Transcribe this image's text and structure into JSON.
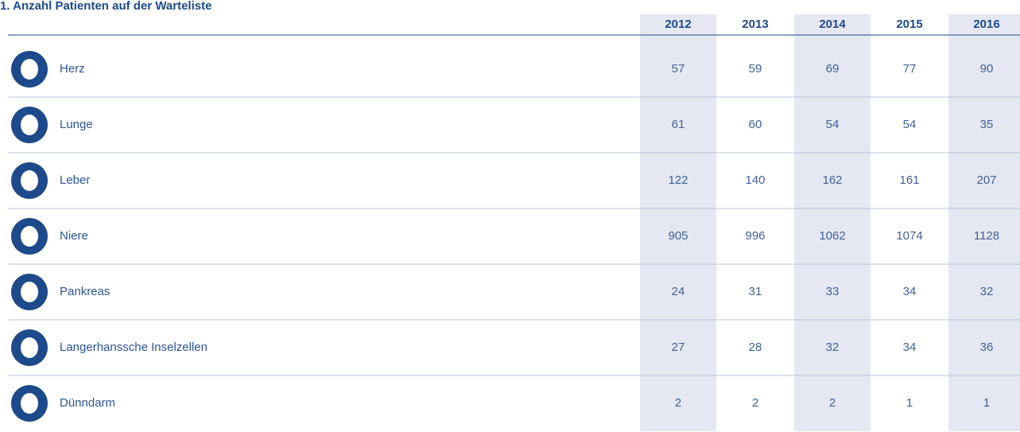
{
  "title": "1. Anzahl Patienten auf der Warteliste",
  "table": {
    "columns": [
      "2012",
      "2013",
      "2014",
      "2015",
      "2016"
    ],
    "rows": [
      {
        "label": "Herz",
        "values": [
          57,
          59,
          69,
          77,
          90
        ]
      },
      {
        "label": "Lunge",
        "values": [
          61,
          60,
          54,
          54,
          35
        ]
      },
      {
        "label": "Leber",
        "values": [
          122,
          140,
          162,
          161,
          207
        ]
      },
      {
        "label": "Niere",
        "values": [
          905,
          996,
          1062,
          1074,
          1128
        ]
      },
      {
        "label": "Pankreas",
        "values": [
          24,
          31,
          33,
          34,
          32
        ]
      },
      {
        "label": "Langerhanssche Inselzellen",
        "values": [
          27,
          28,
          32,
          34,
          36
        ]
      },
      {
        "label": "Dünndarm",
        "values": [
          2,
          2,
          2,
          1,
          1
        ]
      }
    ]
  }
}
